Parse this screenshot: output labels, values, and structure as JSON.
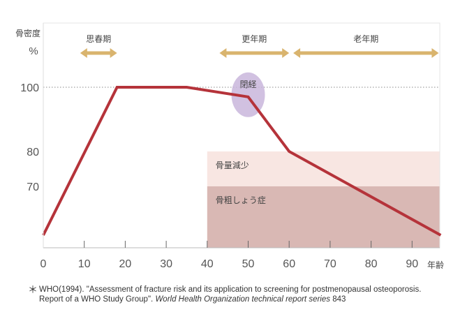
{
  "chart_data": {
    "type": "line",
    "title": "",
    "ylabel": "骨密度\n%",
    "ylabel_lines": [
      "骨密度",
      "%"
    ],
    "xlabel": "年齢",
    "xlim": [
      0,
      97
    ],
    "x_ticks": [
      0,
      10,
      20,
      30,
      40,
      50,
      60,
      70,
      80,
      90
    ],
    "y_ticks": [
      100,
      80,
      70
    ],
    "y_scale": "non-uniform",
    "reference_line": {
      "y": 100,
      "style": "dotted"
    },
    "series": [
      {
        "color": "#b5333a",
        "points": [
          [
            0,
            56
          ],
          [
            18,
            100
          ],
          [
            35,
            100
          ],
          [
            50,
            97
          ],
          [
            60,
            80
          ],
          [
            97,
            56
          ]
        ]
      }
    ],
    "regions": [
      {
        "label": "骨量減少",
        "x": [
          40,
          97
        ],
        "y": [
          70,
          80
        ],
        "color": "#f8e6e2"
      },
      {
        "label": "骨粗しょう症",
        "x": [
          40,
          97
        ],
        "y": [
          52,
          70
        ],
        "color": "#d9b8b4"
      }
    ],
    "period_arrows": [
      {
        "label": "思春期",
        "x": [
          9,
          18
        ]
      },
      {
        "label": "更年期",
        "x": [
          43,
          60
        ]
      },
      {
        "label": "老年期",
        "x": [
          61,
          96.5
        ]
      }
    ],
    "annotation": {
      "label": "閉経",
      "x": 50,
      "y": 97,
      "color": "#c9b6dc"
    },
    "arrow_color": "#d9b46e"
  },
  "footnote": {
    "marker": "＊",
    "text_regular": "WHO(1994). \"Assessment of fracture risk and its application to screening for postmenopausal osteoporosis. Report of a WHO Study Group\". ",
    "text_italic": "World Health Organization technical report series",
    "text_tail": " 843"
  }
}
